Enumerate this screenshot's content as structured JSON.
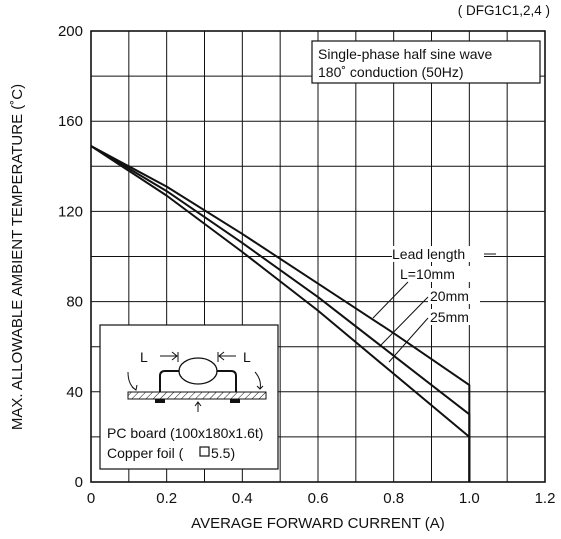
{
  "chart_data": {
    "type": "line",
    "top_caption": "(above chart, partially cut off)",
    "part_label": "( DFG1C1,2,4 )",
    "xlabel": "AVERAGE FORWARD CURRENT (A)",
    "ylabel": "MAX. ALLOWABLE AMBIENT TEMPERATURE (˚C)",
    "xlim": [
      0,
      1.2
    ],
    "ylim": [
      0,
      200
    ],
    "x_ticks": [
      {
        "v": 0,
        "label": "0"
      },
      {
        "v": 0.2,
        "label": "0.2"
      },
      {
        "v": 0.4,
        "label": "0.4"
      },
      {
        "v": 0.6,
        "label": "0.6"
      },
      {
        "v": 0.8,
        "label": "0.8"
      },
      {
        "v": 1.0,
        "label": "1.0"
      },
      {
        "v": 1.2,
        "label": "1.2"
      }
    ],
    "y_ticks": [
      {
        "v": 0,
        "label": "0"
      },
      {
        "v": 40,
        "label": "40"
      },
      {
        "v": 80,
        "label": "80"
      },
      {
        "v": 120,
        "label": "120"
      },
      {
        "v": 160,
        "label": "160"
      },
      {
        "v": 200,
        "label": "200"
      }
    ],
    "grid": true,
    "grid_step_x": 0.1,
    "grid_step_y": 20,
    "condition_box": {
      "line1": "Single-phase half sine wave",
      "line2": "180˚ conduction (50Hz)"
    },
    "legend_title": "Lead length",
    "series": [
      {
        "name": "L=10mm",
        "x": [
          0,
          0.2,
          0.4,
          0.6,
          0.8,
          1.0,
          1.0
        ],
        "y": [
          149,
          131,
          110,
          88,
          66,
          43,
          0
        ]
      },
      {
        "name": "20mm",
        "x": [
          0,
          0.2,
          0.4,
          0.6,
          0.8,
          1.0,
          1.0
        ],
        "y": [
          149,
          129,
          106,
          82,
          56,
          30,
          0
        ]
      },
      {
        "name": "25mm",
        "x": [
          0,
          0.2,
          0.4,
          0.6,
          0.8,
          1.0,
          1.0
        ],
        "y": [
          149,
          127,
          102,
          76,
          48,
          20,
          0
        ]
      }
    ],
    "inset": {
      "lead_label": "L",
      "caption1": "PC board (100x180x1.6t)",
      "caption2": "Copper foil (",
      "caption2_value": "5.5)"
    }
  }
}
